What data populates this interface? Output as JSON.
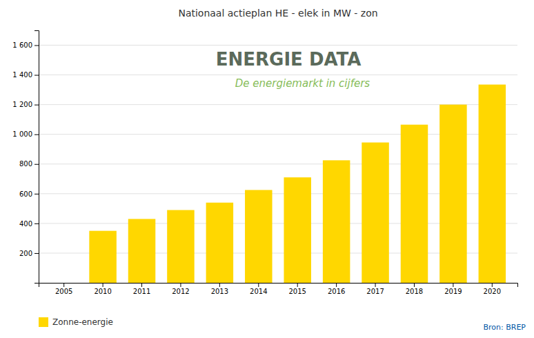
{
  "chart_data": {
    "type": "bar",
    "title": "Nationaal actieplan HE - elek in MW - zon",
    "categories": [
      2005,
      2010,
      2011,
      2012,
      2013,
      2014,
      2015,
      2016,
      2017,
      2018,
      2019,
      2020
    ],
    "series": [
      {
        "name": "Zonne-energie",
        "color": "#FFD700",
        "values": [
          0,
          350,
          430,
          490,
          540,
          625,
          710,
          825,
          945,
          1065,
          1200,
          1335
        ]
      }
    ],
    "ylim": [
      0,
      1700
    ],
    "yticks": [
      200,
      400,
      600,
      800,
      {
        "value": 1000,
        "label": "1 000"
      },
      {
        "value": 1200,
        "label": "1 200"
      },
      {
        "value": 1400,
        "label": "1 400"
      },
      {
        "value": 1600,
        "label": "1 600"
      }
    ],
    "grid": true,
    "legend": "bottom",
    "annotations": [
      "ENERGIE DATA",
      "De energiemarkt in cijfers",
      "Bron: BREP"
    ]
  }
}
